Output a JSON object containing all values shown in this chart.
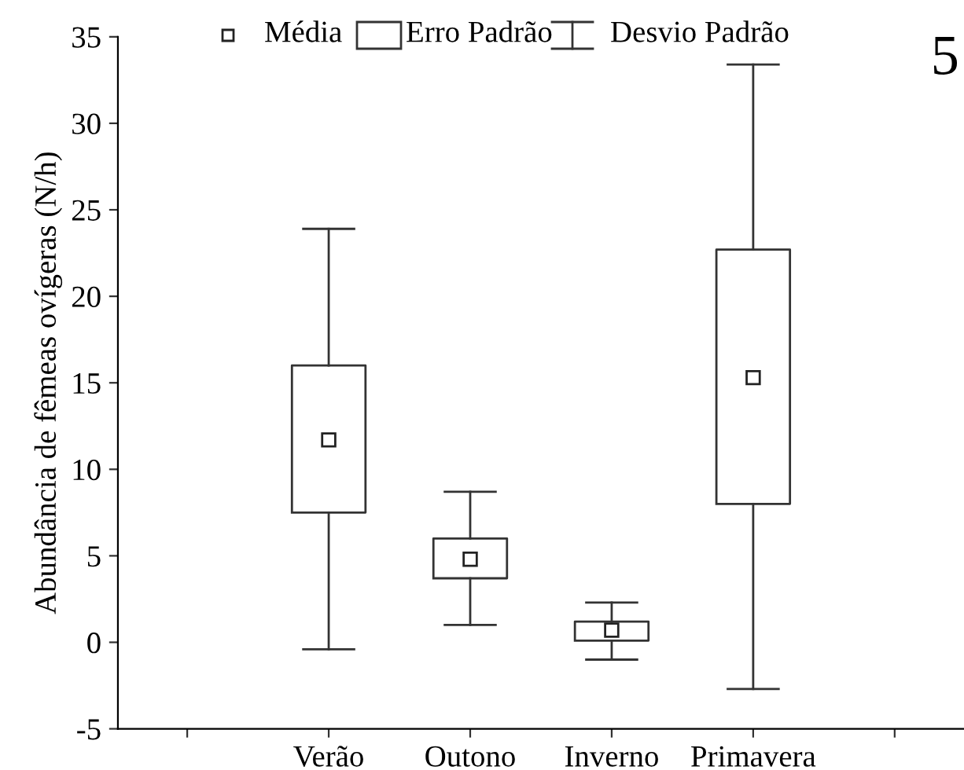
{
  "chart_data": {
    "type": "box",
    "ylabel": "Abundância de fêmeas ovígeras (N/h)",
    "categories": [
      null,
      "Verão",
      "Outono",
      "Inverno",
      "Primavera",
      null
    ],
    "boxes": [
      null,
      {
        "low": -0.4,
        "q1": 7.5,
        "median": 11.7,
        "q3": 16.0,
        "high": 23.9
      },
      {
        "low": 1.0,
        "q1": 3.7,
        "median": 4.8,
        "q3": 6.0,
        "high": 8.7
      },
      {
        "low": -1.0,
        "q1": 0.1,
        "median": 0.7,
        "q3": 1.2,
        "high": 2.3
      },
      {
        "low": -2.7,
        "q1": 8.0,
        "median": 15.3,
        "q3": 22.7,
        "high": 33.4
      },
      null
    ],
    "ylim": [
      -5,
      35
    ],
    "yticks": [
      -5,
      0,
      5,
      10,
      15,
      20,
      25,
      30,
      35
    ],
    "grid": false,
    "annotations": [
      "Média",
      "Erro Padrão",
      "Desvio Padrão",
      "5"
    ]
  }
}
